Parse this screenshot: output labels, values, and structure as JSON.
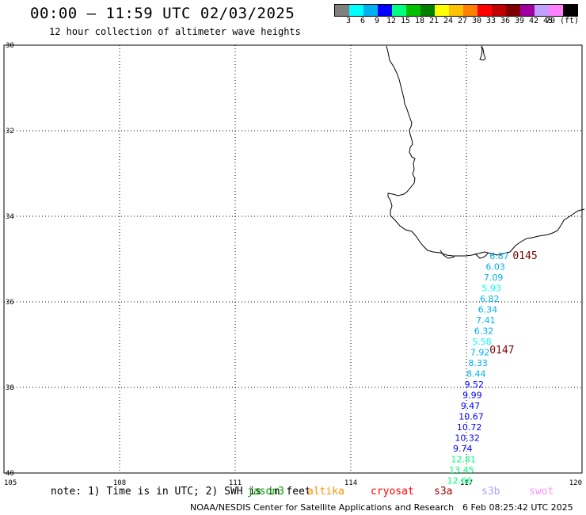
{
  "header": {
    "title": "00:00 – 11:59 UTC 02/03/2025",
    "subtitle": "12 hour collection of altimeter wave heights"
  },
  "legend": {
    "colors": [
      "#808080",
      "#00ffff",
      "#00b0f0",
      "#0000ff",
      "#00ff80",
      "#00c000",
      "#008000",
      "#ffff00",
      "#ffc000",
      "#ff8000",
      "#ff0000",
      "#c00000",
      "#800000",
      "#a000a0",
      "#c0a0ff",
      "#ff80ff",
      "#000000"
    ],
    "labels": [
      "3",
      "6",
      "9",
      "12",
      "15",
      "18",
      "21",
      "24",
      "27",
      "30",
      "33",
      "36",
      "39",
      "42",
      "45",
      "70 (ft)"
    ]
  },
  "map": {
    "lat_ticks": [
      "30",
      "32",
      "34",
      "36",
      "38",
      "40"
    ],
    "lon_ticks": [
      "105",
      "108",
      "111",
      "114",
      "117",
      "120"
    ],
    "track_labels": [
      {
        "text": "0145",
        "lon": 118.2,
        "lat": -35.0
      },
      {
        "text": "0147",
        "lon": 117.6,
        "lat": -37.2
      }
    ],
    "wave_heights": [
      {
        "value": "6.87",
        "lon": 117.6,
        "lat": -35.0
      },
      {
        "value": "6.03",
        "lon": 117.5,
        "lat": -35.25
      },
      {
        "value": "7.09",
        "lon": 117.45,
        "lat": -35.5
      },
      {
        "value": "5.93",
        "lon": 117.4,
        "lat": -35.75
      },
      {
        "value": "6.82",
        "lon": 117.35,
        "lat": -36.0
      },
      {
        "value": "6.34",
        "lon": 117.3,
        "lat": -36.25
      },
      {
        "value": "7.41",
        "lon": 117.25,
        "lat": -36.5
      },
      {
        "value": "6.32",
        "lon": 117.2,
        "lat": -36.75
      },
      {
        "value": "5.58",
        "lon": 117.15,
        "lat": -37.0
      },
      {
        "value": "7.92",
        "lon": 117.1,
        "lat": -37.25
      },
      {
        "value": "8.33",
        "lon": 117.05,
        "lat": -37.5
      },
      {
        "value": "8.44",
        "lon": 117.0,
        "lat": -37.75
      },
      {
        "value": "9.52",
        "lon": 116.95,
        "lat": -38.0
      },
      {
        "value": "9.99",
        "lon": 116.9,
        "lat": -38.25
      },
      {
        "value": "9.47",
        "lon": 116.85,
        "lat": -38.5
      },
      {
        "value": "10.67",
        "lon": 116.8,
        "lat": -38.75
      },
      {
        "value": "10.72",
        "lon": 116.75,
        "lat": -39.0
      },
      {
        "value": "10.32",
        "lon": 116.7,
        "lat": -39.25
      },
      {
        "value": "9.74",
        "lon": 116.65,
        "lat": -39.5
      },
      {
        "value": "12.81",
        "lon": 116.6,
        "lat": -39.75
      },
      {
        "value": "13.45",
        "lon": 116.55,
        "lat": -40.0
      },
      {
        "value": "12.66",
        "lon": 116.5,
        "lat": -40.25
      }
    ]
  },
  "note": "note: 1) Time is in UTC; 2) SWH is in feet",
  "satellites": [
    {
      "name": "jason3",
      "color": "#00a000"
    },
    {
      "name": "altika",
      "color": "#ff9000"
    },
    {
      "name": "cryosat",
      "color": "#ff0000"
    },
    {
      "name": "s3a",
      "color": "#a00000"
    },
    {
      "name": "s3b",
      "color": "#b0a0ff"
    },
    {
      "name": "swot",
      "color": "#ff90ff"
    }
  ],
  "footer": {
    "credit": "NOAA/NESDIS Center for Satellite Applications and Research",
    "timestamp": "6 Feb 08:25:42 UTC 2025"
  }
}
